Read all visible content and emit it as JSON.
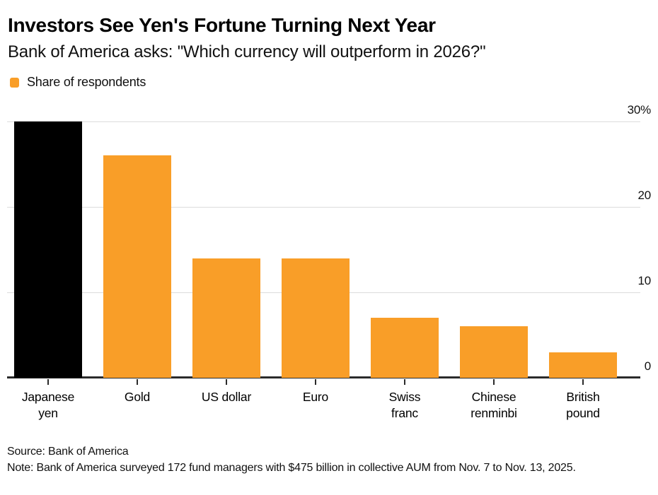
{
  "header": {
    "title": "Investors See Yen's Fortune Turning Next Year",
    "subtitle": "Bank of America asks: \"Which currency will outperform in 2026?\""
  },
  "legend": {
    "label": "Share of respondents",
    "swatch_color": "#F99E28"
  },
  "chart_data": {
    "type": "bar",
    "title": "Investors See Yen's Fortune Turning Next Year",
    "subtitle": "Bank of America asks: \"Which currency will outperform in 2026?\"",
    "series_name": "Share of respondents",
    "categories": [
      "Japanese yen",
      "Gold",
      "US dollar",
      "Euro",
      "Swiss franc",
      "Chinese renminbi",
      "British pound"
    ],
    "values": [
      30,
      26,
      14,
      14,
      7,
      6,
      3
    ],
    "tick_labels_display": [
      "Japanese\nyen",
      "Gold",
      "US dollar",
      "Euro",
      "Swiss\nfranc",
      "Chinese\nrenminbi",
      "British\npound"
    ],
    "bar_colors": [
      "#000000",
      "#F99E28",
      "#F99E28",
      "#F99E28",
      "#F99E28",
      "#F99E28",
      "#F99E28"
    ],
    "highlight_category": "Japanese yen",
    "xlabel": "",
    "ylabel": "",
    "unit": "%",
    "ylim": [
      0,
      30
    ],
    "yticks": [
      0,
      10,
      20,
      30
    ],
    "ytick_labels": [
      "0",
      "10",
      "20",
      "30%"
    ],
    "grid": "horizontal",
    "legend_position": "top-left",
    "axis_side": "right"
  },
  "colors": {
    "accent_orange": "#F99E28",
    "highlight_black": "#000000",
    "gridline": "#dcdcdc",
    "axis_line": "#2b2b2b"
  },
  "footer": {
    "source": "Source: Bank of America",
    "note": "Note: Bank of America surveyed 172 fund managers with $475 billion in collective AUM from Nov. 7 to Nov. 13, 2025."
  }
}
